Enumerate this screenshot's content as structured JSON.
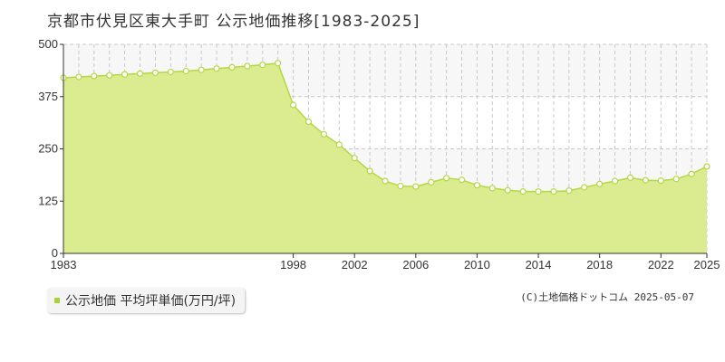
{
  "title": "京都市伏見区東大手町 公示地価推移[1983-2025]",
  "legend_label": "公示地価 平均坪単価(万円/坪)",
  "credit": "(C)土地価格ドットコム 2025-05-07",
  "colors": {
    "fill": "#dbeb8f",
    "line": "#b4d843",
    "point_fill": "#ffffff",
    "point_stroke": "#b4d843",
    "band": "#f7f7f7",
    "grid": "#c8c8c8",
    "axis": "#333333"
  },
  "chart_data": {
    "type": "area",
    "x_ticks": [
      "1983",
      "1998",
      "2002",
      "2006",
      "2010",
      "2014",
      "2018",
      "2022",
      "2025"
    ],
    "y_ticks": [
      0,
      125,
      250,
      375,
      500
    ],
    "xlim": [
      1983,
      2025
    ],
    "ylim": [
      0,
      500
    ],
    "grid": true,
    "series": [
      {
        "x": [
          1983,
          1984,
          1985,
          1986,
          1987,
          1988,
          1989,
          1990,
          1991,
          1992,
          1993,
          1994,
          1995,
          1996,
          1997,
          1998,
          1999,
          2000,
          2001,
          2002,
          2003,
          2004,
          2005,
          2006,
          2007,
          2008,
          2009,
          2010,
          2011,
          2012,
          2013,
          2014,
          2015,
          2016,
          2017,
          2018,
          2019,
          2020,
          2021,
          2022,
          2023,
          2024,
          2025
        ],
        "values": [
          420,
          422,
          424,
          426,
          428,
          430,
          432,
          434,
          436,
          439,
          442,
          445,
          448,
          451,
          455,
          355,
          315,
          285,
          260,
          228,
          197,
          173,
          161,
          160,
          170,
          180,
          176,
          163,
          156,
          151,
          148,
          148,
          148,
          150,
          158,
          166,
          173,
          181,
          175,
          174,
          178,
          190,
          208
        ]
      }
    ]
  }
}
